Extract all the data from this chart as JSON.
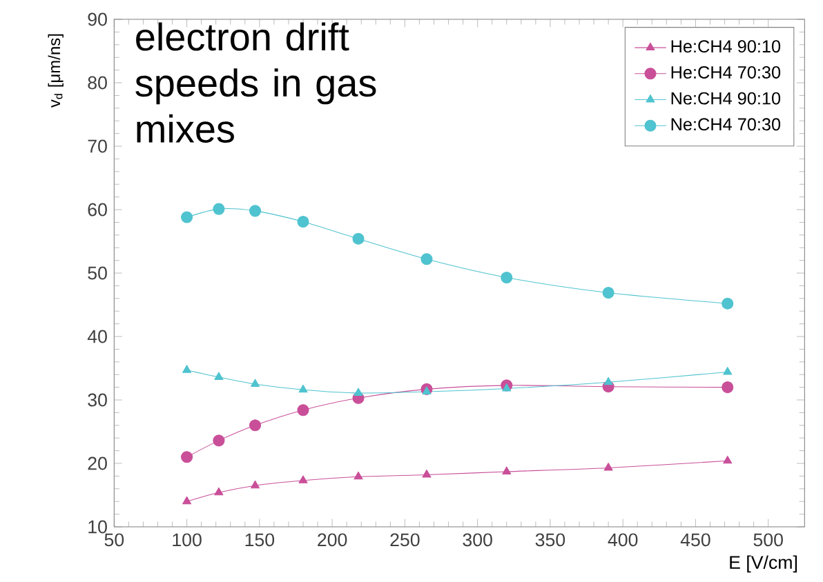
{
  "chart_data": {
    "type": "line",
    "title": "electron drift speeds in gas mixes",
    "xlabel": "E [V/cm]",
    "ylabel": "v$_{d}$ [μm/ns]",
    "x": [
      100,
      122,
      147,
      180,
      218,
      265,
      320,
      390,
      472
    ],
    "series": [
      {
        "name": "He:CH4 90:10",
        "color": "#c94f99",
        "marker": "triangle",
        "values": [
          14.0,
          15.4,
          16.5,
          17.3,
          17.9,
          18.2,
          18.7,
          19.3,
          20.4
        ]
      },
      {
        "name": "He:CH4 70:30",
        "color": "#c94f99",
        "marker": "circle",
        "values": [
          21.0,
          23.6,
          26.0,
          28.4,
          30.3,
          31.7,
          32.3,
          32.1,
          32.0
        ]
      },
      {
        "name": "Ne:CH4 90:10",
        "color": "#4fc3cf",
        "marker": "triangle",
        "values": [
          34.7,
          33.6,
          32.5,
          31.6,
          31.1,
          31.3,
          31.8,
          32.8,
          34.4
        ]
      },
      {
        "name": "Ne:CH4 70:30",
        "color": "#4fc3cf",
        "marker": "circle",
        "values": [
          58.8,
          60.1,
          59.8,
          58.1,
          55.4,
          52.2,
          49.3,
          46.9,
          45.2
        ]
      }
    ],
    "xlim": [
      50,
      525
    ],
    "xticks": [
      50,
      100,
      150,
      200,
      250,
      300,
      350,
      400,
      450,
      500
    ],
    "ylim": [
      10,
      90
    ],
    "yticks": [
      10,
      20,
      30,
      40,
      50,
      60,
      70,
      80,
      90
    ],
    "grid": false,
    "legend": "top right",
    "line_style": "solid"
  }
}
